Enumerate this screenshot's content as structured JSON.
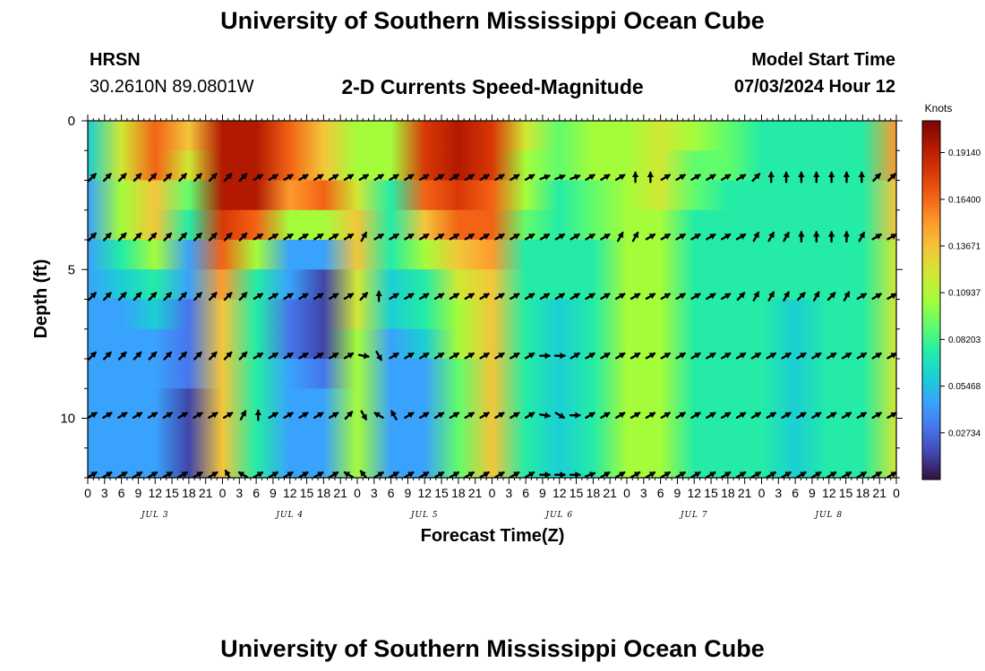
{
  "header": {
    "title": "University of Southern Mississippi Ocean Cube",
    "station": "HRSN",
    "coords": "30.2610N  89.0801W",
    "subtitle": "2-D Currents Speed-Magnitude",
    "model_label": "Model Start Time",
    "model_time": "07/03/2024 Hour 12",
    "footer_title": "University of Southern Mississippi Ocean Cube"
  },
  "chart_data": {
    "type": "heatmap",
    "title": "2-D Currents Speed-Magnitude",
    "xlabel": "Forecast Time(Z)",
    "ylabel": "Depth (ft)",
    "x_tick_labels": [
      "0",
      "3",
      "6",
      "9",
      "12",
      "15",
      "18",
      "21",
      "0",
      "3",
      "6",
      "9",
      "12",
      "15",
      "18",
      "21",
      "0",
      "3",
      "6",
      "9",
      "12",
      "15",
      "18",
      "21",
      "0",
      "3",
      "6",
      "9",
      "12",
      "15",
      "18",
      "21",
      "0",
      "3",
      "6",
      "9",
      "12",
      "15",
      "18",
      "21",
      "0",
      "3",
      "6",
      "9",
      "12",
      "15",
      "18",
      "21",
      "0"
    ],
    "day_labels": [
      "JUL 3",
      "JUL 4",
      "JUL 5",
      "JUL 6",
      "JUL 7",
      "JUL 8"
    ],
    "y_ticks": [
      0,
      5,
      10
    ],
    "ylim": [
      0,
      12
    ],
    "y_inverted": true,
    "colorbar": {
      "unit": "Knots",
      "ticks": [
        "0.19140",
        "0.16400",
        "0.13671",
        "0.10937",
        "0.08203",
        "0.05468",
        "0.02734"
      ],
      "tick_values": [
        0.1914,
        0.164,
        0.13671,
        0.10937,
        0.08203,
        0.05468,
        0.02734
      ],
      "range": [
        0.0,
        0.21
      ],
      "colormap": [
        "#30123b",
        "#4145ab",
        "#4675ed",
        "#39a2fc",
        "#1bcfd4",
        "#24eca6",
        "#61fc6c",
        "#a4fc3b",
        "#d1e834",
        "#f3c63a",
        "#fe9b2d",
        "#f36315",
        "#d93806",
        "#b11901",
        "#7a0403"
      ]
    },
    "speed_grid": {
      "depths_ft": [
        0.5,
        1.5,
        2.5,
        3.5,
        4.5,
        5.5,
        6.5,
        7.5,
        8.5,
        9.5,
        10.5,
        11.5
      ],
      "hour_offsets": [
        0,
        6,
        12,
        18,
        24,
        30,
        36,
        42,
        48,
        54,
        60,
        66,
        72,
        78,
        84,
        90,
        96,
        102,
        108,
        114,
        120,
        126,
        132,
        138,
        144
      ],
      "values_knots": [
        [
          0.06,
          0.12,
          0.17,
          0.14,
          0.19,
          0.19,
          0.17,
          0.14,
          0.11,
          0.1,
          0.18,
          0.2,
          0.18,
          0.12,
          0.09,
          0.1,
          0.1,
          0.12,
          0.1,
          0.09,
          0.08,
          0.07,
          0.07,
          0.08,
          0.15
        ],
        [
          0.06,
          0.12,
          0.17,
          0.12,
          0.19,
          0.19,
          0.17,
          0.14,
          0.11,
          0.1,
          0.18,
          0.19,
          0.18,
          0.11,
          0.09,
          0.1,
          0.1,
          0.12,
          0.09,
          0.09,
          0.08,
          0.07,
          0.07,
          0.08,
          0.15
        ],
        [
          0.05,
          0.11,
          0.14,
          0.09,
          0.19,
          0.19,
          0.15,
          0.16,
          0.12,
          0.08,
          0.17,
          0.18,
          0.17,
          0.1,
          0.08,
          0.09,
          0.1,
          0.12,
          0.09,
          0.08,
          0.08,
          0.07,
          0.07,
          0.08,
          0.14
        ],
        [
          0.05,
          0.1,
          0.13,
          0.07,
          0.18,
          0.17,
          0.1,
          0.1,
          0.14,
          0.08,
          0.14,
          0.17,
          0.16,
          0.09,
          0.08,
          0.09,
          0.1,
          0.11,
          0.08,
          0.08,
          0.07,
          0.07,
          0.07,
          0.08,
          0.13
        ],
        [
          0.04,
          0.08,
          0.1,
          0.05,
          0.16,
          0.1,
          0.05,
          0.04,
          0.13,
          0.07,
          0.1,
          0.14,
          0.15,
          0.08,
          0.07,
          0.08,
          0.1,
          0.11,
          0.08,
          0.07,
          0.07,
          0.07,
          0.07,
          0.08,
          0.12
        ],
        [
          0.04,
          0.06,
          0.07,
          0.04,
          0.15,
          0.08,
          0.04,
          0.02,
          0.12,
          0.06,
          0.08,
          0.12,
          0.14,
          0.08,
          0.07,
          0.08,
          0.1,
          0.11,
          0.08,
          0.07,
          0.07,
          0.07,
          0.07,
          0.08,
          0.12
        ],
        [
          0.04,
          0.05,
          0.06,
          0.03,
          0.14,
          0.07,
          0.03,
          0.01,
          0.12,
          0.06,
          0.07,
          0.1,
          0.14,
          0.07,
          0.06,
          0.08,
          0.1,
          0.11,
          0.08,
          0.07,
          0.07,
          0.06,
          0.07,
          0.08,
          0.12
        ],
        [
          0.04,
          0.05,
          0.05,
          0.03,
          0.14,
          0.07,
          0.03,
          0.02,
          0.11,
          0.05,
          0.06,
          0.1,
          0.14,
          0.07,
          0.06,
          0.08,
          0.1,
          0.11,
          0.08,
          0.07,
          0.07,
          0.06,
          0.07,
          0.08,
          0.12
        ],
        [
          0.04,
          0.05,
          0.05,
          0.03,
          0.14,
          0.07,
          0.04,
          0.03,
          0.11,
          0.05,
          0.05,
          0.09,
          0.14,
          0.07,
          0.06,
          0.08,
          0.1,
          0.11,
          0.08,
          0.07,
          0.07,
          0.06,
          0.07,
          0.08,
          0.12
        ],
        [
          0.04,
          0.05,
          0.05,
          0.02,
          0.14,
          0.07,
          0.04,
          0.04,
          0.11,
          0.05,
          0.05,
          0.09,
          0.14,
          0.07,
          0.06,
          0.08,
          0.1,
          0.11,
          0.08,
          0.07,
          0.07,
          0.06,
          0.07,
          0.08,
          0.12
        ],
        [
          0.04,
          0.05,
          0.05,
          0.02,
          0.14,
          0.07,
          0.04,
          0.04,
          0.11,
          0.05,
          0.05,
          0.09,
          0.14,
          0.07,
          0.06,
          0.08,
          0.1,
          0.11,
          0.08,
          0.07,
          0.07,
          0.06,
          0.07,
          0.08,
          0.12
        ],
        [
          0.04,
          0.05,
          0.05,
          0.02,
          0.14,
          0.07,
          0.04,
          0.04,
          0.11,
          0.05,
          0.05,
          0.09,
          0.14,
          0.07,
          0.06,
          0.08,
          0.1,
          0.11,
          0.08,
          0.07,
          0.07,
          0.06,
          0.07,
          0.08,
          0.12
        ]
      ]
    },
    "vectors": {
      "depths_ft": [
        1.9,
        3.9,
        5.9,
        7.9,
        9.9,
        11.9
      ],
      "direction_deg": [
        [
          45,
          45,
          45,
          45,
          45,
          45,
          45,
          45,
          45,
          45,
          45,
          60,
          60,
          60,
          60,
          60,
          60,
          60,
          60,
          60,
          60,
          60,
          60,
          60,
          60,
          60,
          60,
          60,
          60,
          60,
          70,
          70,
          70,
          60,
          60,
          60,
          0,
          0,
          60,
          60,
          60,
          60,
          60,
          60,
          45,
          0,
          0,
          0,
          0,
          0,
          0,
          0,
          45,
          45
        ],
        [
          45,
          45,
          45,
          45,
          45,
          45,
          45,
          45,
          45,
          45,
          45,
          60,
          60,
          60,
          60,
          60,
          60,
          60,
          30,
          60,
          60,
          60,
          60,
          60,
          60,
          60,
          60,
          60,
          60,
          60,
          60,
          60,
          60,
          60,
          60,
          30,
          30,
          60,
          60,
          60,
          60,
          60,
          60,
          60,
          30,
          30,
          30,
          0,
          0,
          0,
          0,
          30,
          60,
          60
        ],
        [
          45,
          45,
          45,
          45,
          45,
          45,
          45,
          45,
          45,
          45,
          45,
          60,
          60,
          60,
          60,
          60,
          60,
          60,
          45,
          0,
          60,
          60,
          60,
          60,
          60,
          60,
          60,
          60,
          60,
          60,
          60,
          60,
          60,
          60,
          60,
          60,
          60,
          60,
          60,
          60,
          60,
          60,
          60,
          45,
          30,
          30,
          30,
          45,
          30,
          45,
          30,
          60,
          60,
          60
        ],
        [
          45,
          45,
          45,
          45,
          45,
          45,
          45,
          45,
          45,
          45,
          45,
          60,
          60,
          60,
          60,
          60,
          60,
          60,
          100,
          150,
          60,
          60,
          60,
          60,
          60,
          60,
          60,
          60,
          60,
          60,
          90,
          90,
          60,
          60,
          60,
          60,
          60,
          60,
          60,
          60,
          60,
          60,
          60,
          60,
          60,
          60,
          60,
          60,
          60,
          60,
          60,
          60,
          60,
          60
        ],
        [
          60,
          60,
          60,
          60,
          60,
          60,
          60,
          60,
          60,
          60,
          30,
          0,
          60,
          60,
          60,
          60,
          60,
          45,
          150,
          300,
          330,
          60,
          60,
          60,
          60,
          60,
          60,
          60,
          60,
          60,
          100,
          120,
          90,
          60,
          60,
          60,
          60,
          60,
          60,
          60,
          60,
          60,
          60,
          60,
          60,
          60,
          60,
          60,
          60,
          60,
          60,
          60,
          60,
          60
        ],
        [
          60,
          60,
          60,
          60,
          60,
          60,
          60,
          60,
          60,
          330,
          300,
          60,
          60,
          60,
          60,
          60,
          60,
          300,
          320,
          60,
          60,
          60,
          60,
          60,
          60,
          60,
          60,
          60,
          60,
          60,
          90,
          90,
          90,
          70,
          60,
          60,
          60,
          60,
          60,
          60,
          60,
          60,
          60,
          60,
          60,
          60,
          60,
          60,
          60,
          60,
          60,
          60,
          60,
          60
        ]
      ]
    }
  }
}
